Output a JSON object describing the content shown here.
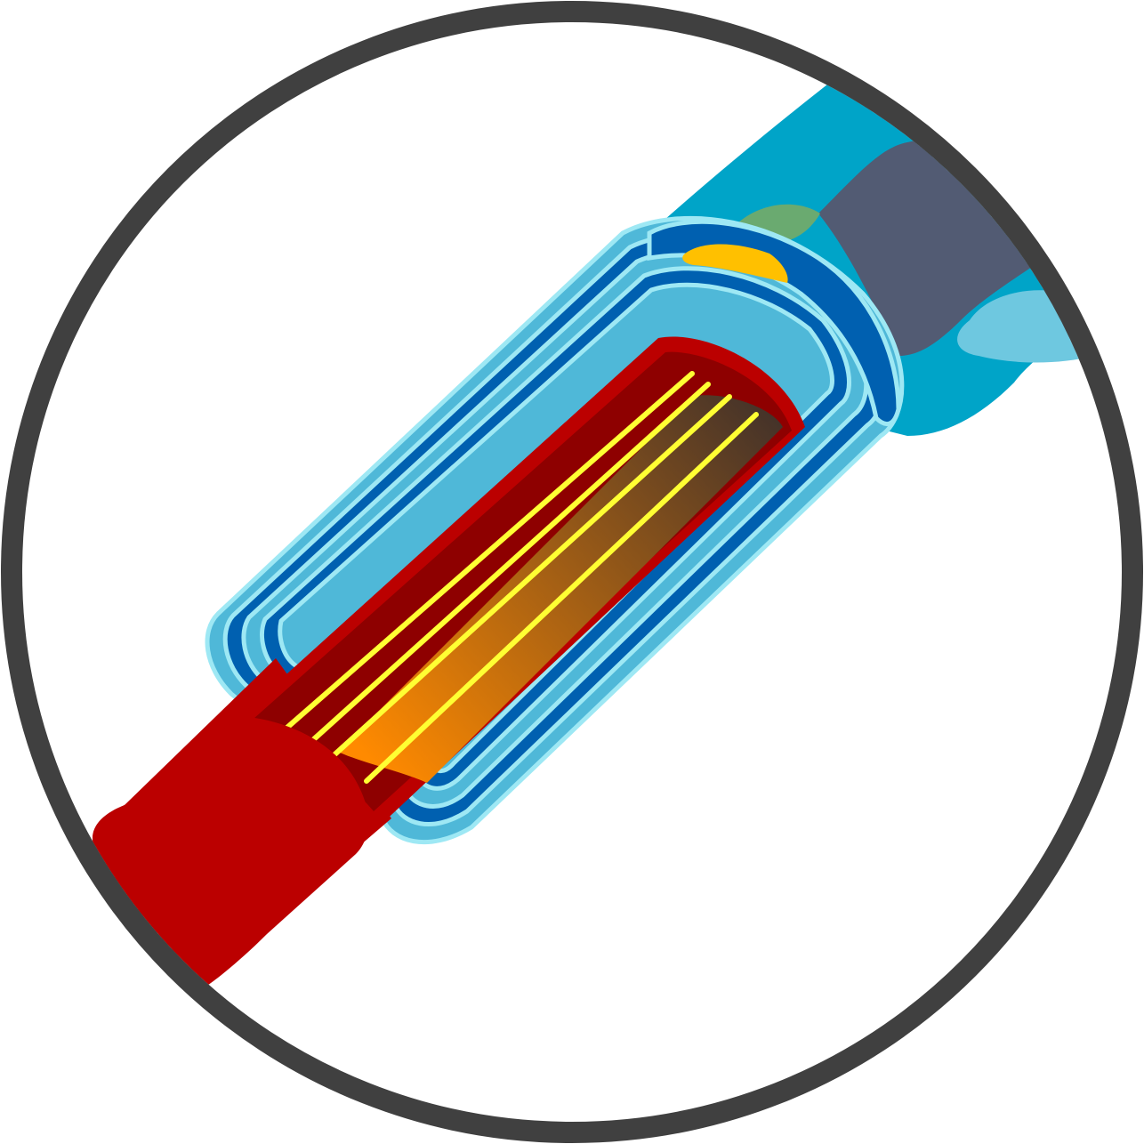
{
  "diagram": {
    "subject": "myelinated-nerve-fiber-icon",
    "colors": {
      "frame": "#404040",
      "background": "#ffffff",
      "axon": "#bb0000",
      "axon_dark": "#8e0000",
      "axon_inner_light": "#ff8a00",
      "axon_inner_dark": "#3d2f2b",
      "neurofilament": "#ffff33",
      "myelin_dark": "#0060b0",
      "myelin_light": "#4fb8d8",
      "myelin_highlight": "#9ee8f4",
      "schwann_cell": "#00a4c8",
      "schwann_light": "#6ec8e0",
      "node_region": "#525b73",
      "nucleus": "#ffc000",
      "organelle": "#6aaa70"
    }
  }
}
